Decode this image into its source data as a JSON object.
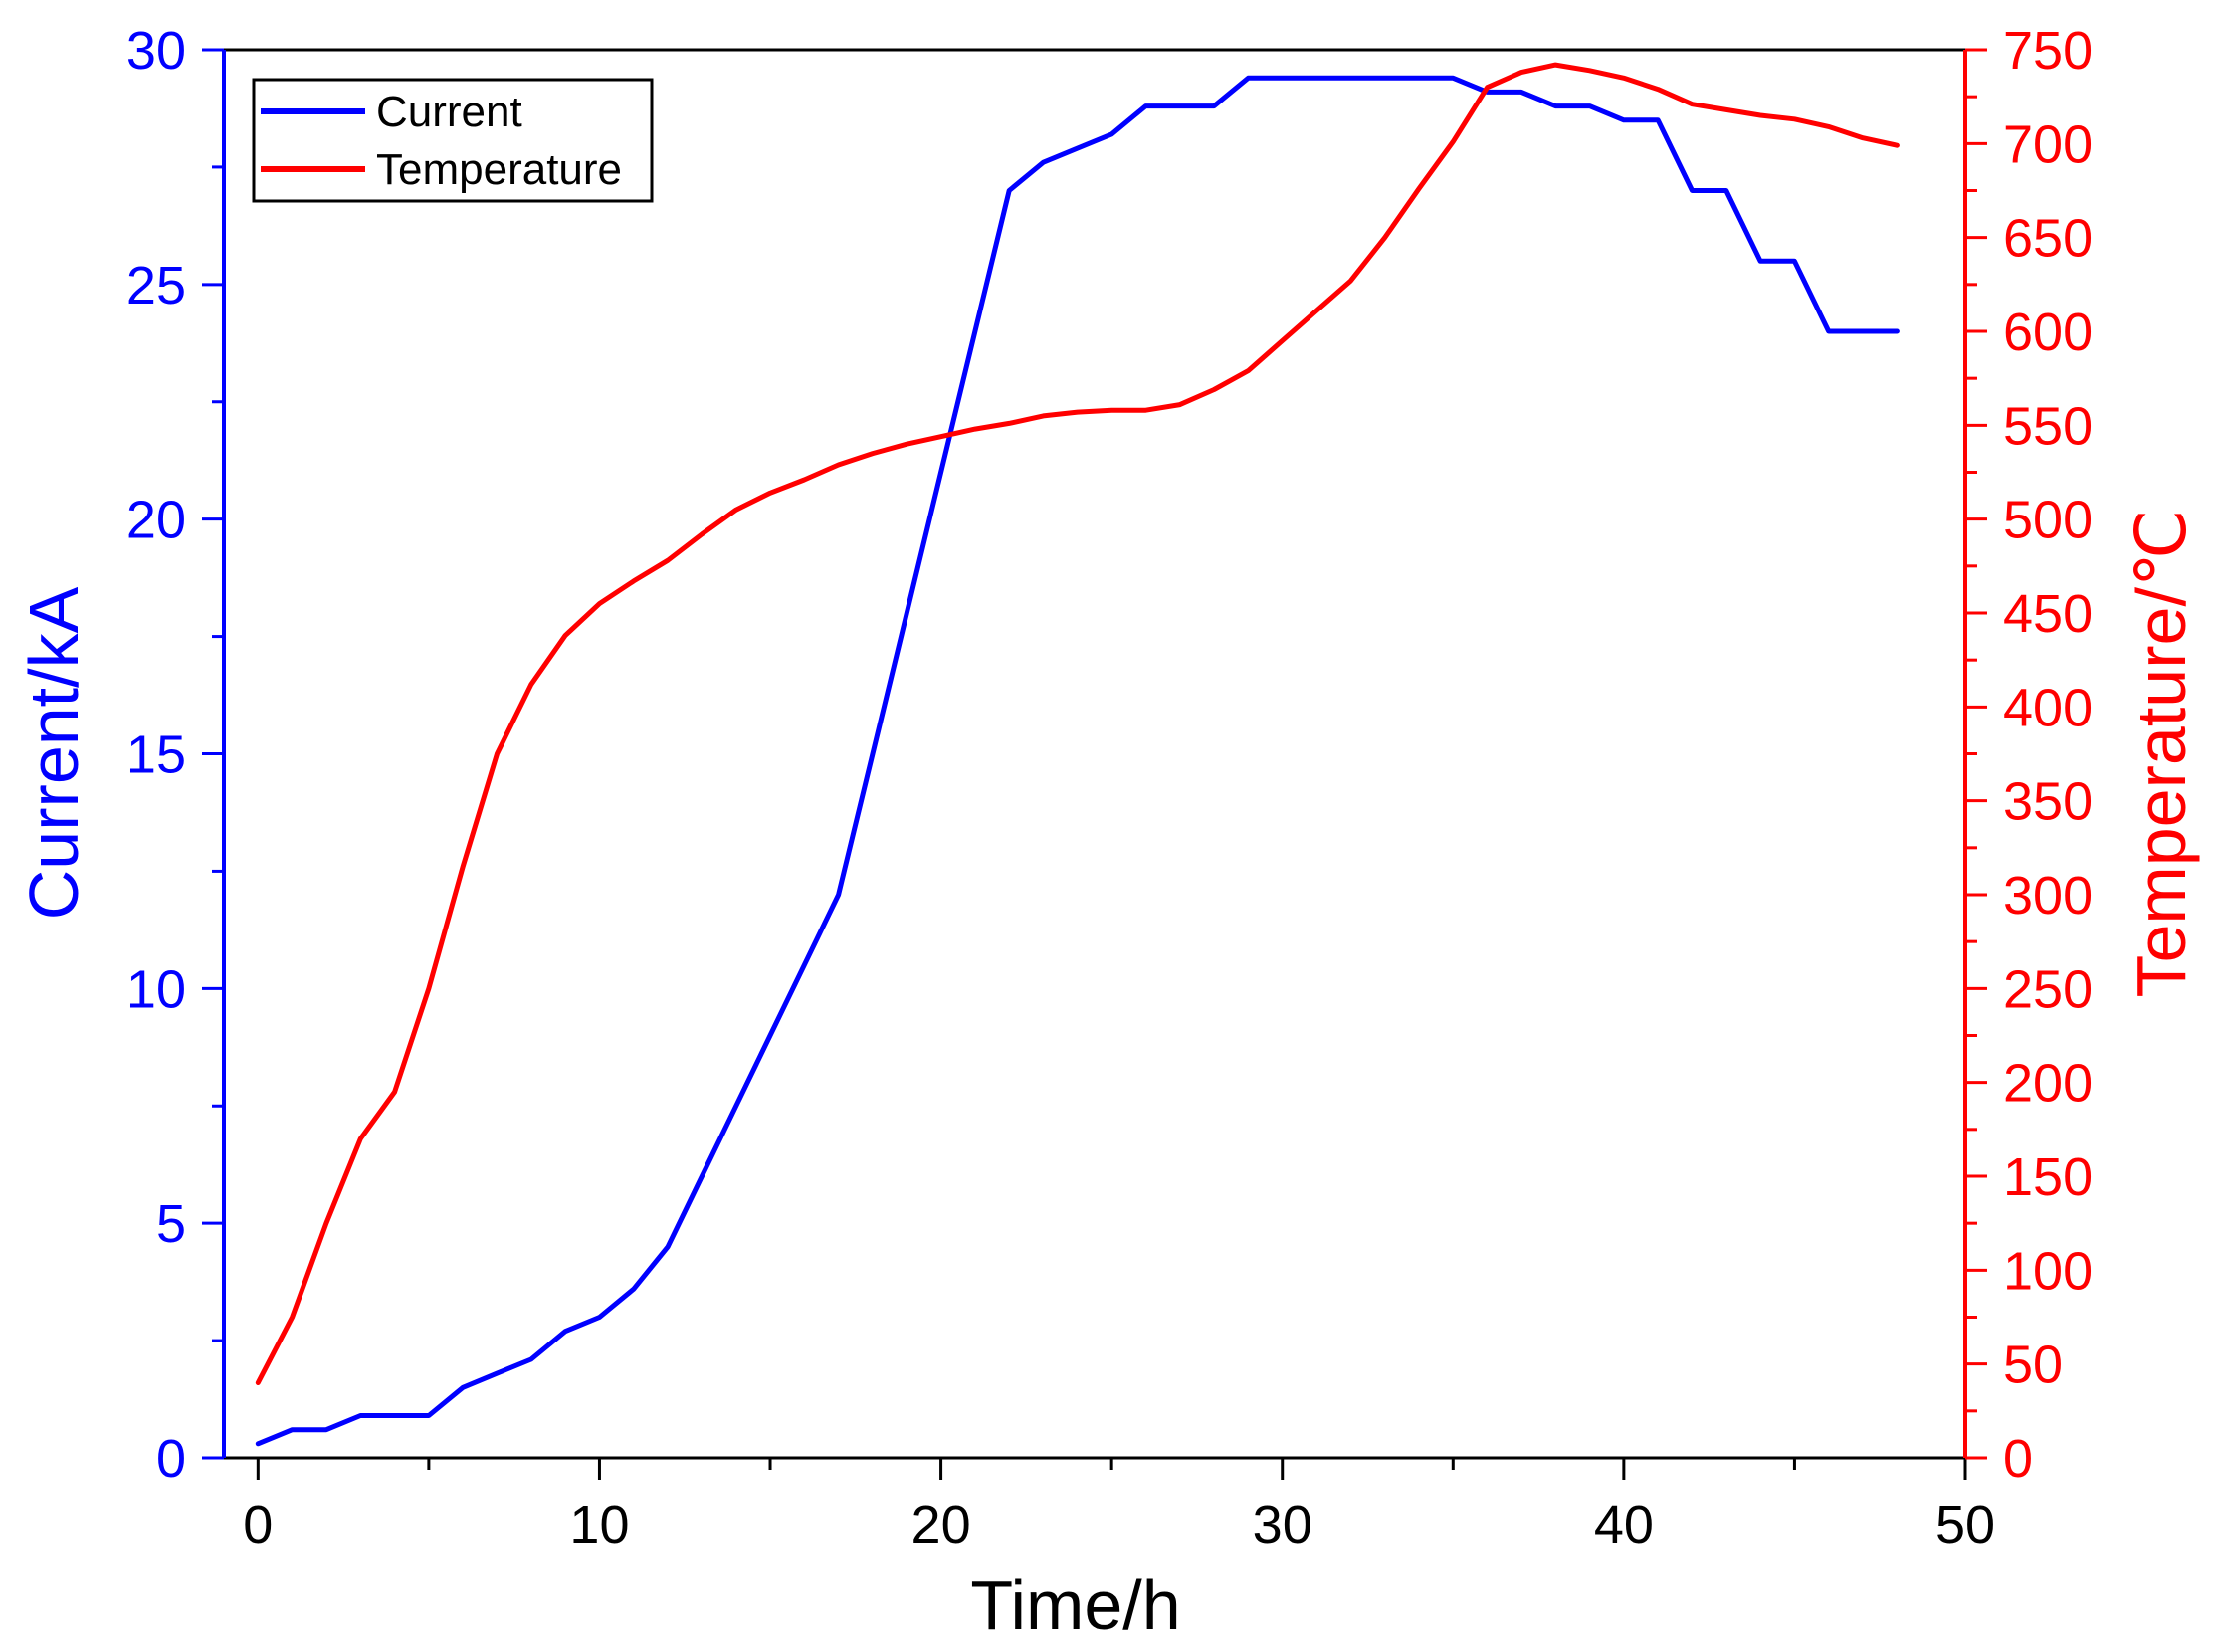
{
  "chart_data": {
    "type": "line",
    "title": "",
    "xlabel": "Time/h",
    "ylabel_left": "Current/kA",
    "ylabel_right": "Temperature/℃",
    "xlim": [
      -1,
      50
    ],
    "ylim_left": [
      0,
      30
    ],
    "ylim_right": [
      0,
      750
    ],
    "x_ticks": [
      0,
      10,
      20,
      30,
      40,
      50
    ],
    "y_left_ticks": [
      0,
      5,
      10,
      15,
      20,
      25,
      30
    ],
    "y_right_ticks": [
      0,
      50,
      100,
      150,
      200,
      250,
      300,
      350,
      400,
      450,
      500,
      550,
      600,
      650,
      700,
      750
    ],
    "grid": false,
    "legend_position": "top-left",
    "series": [
      {
        "name": "Current",
        "axis": "left",
        "color": "#0000ff",
        "x": [
          0,
          1,
          2,
          3,
          4,
          5,
          6,
          7,
          8,
          9,
          10,
          11,
          12,
          13,
          14,
          15,
          16,
          17,
          18,
          19,
          20,
          21,
          22,
          23,
          24,
          25,
          26,
          27,
          28,
          29,
          30,
          31,
          32,
          33,
          34,
          35,
          36,
          37,
          38,
          39,
          40,
          41,
          42,
          43,
          44,
          45,
          46,
          47,
          48
        ],
        "values": [
          0.3,
          0.6,
          0.6,
          0.9,
          0.9,
          0.9,
          1.5,
          1.8,
          2.1,
          2.7,
          3.0,
          3.6,
          4.5,
          6.0,
          7.5,
          9.0,
          10.5,
          12.0,
          15.0,
          18.0,
          21.0,
          24.0,
          27.0,
          27.6,
          27.9,
          28.2,
          28.8,
          28.8,
          28.8,
          29.4,
          29.4,
          29.4,
          29.4,
          29.4,
          29.4,
          29.4,
          29.1,
          29.1,
          28.8,
          28.8,
          28.5,
          28.5,
          27.0,
          27.0,
          25.5,
          25.5,
          24.0,
          24.0,
          24.0
        ]
      },
      {
        "name": "Temperature",
        "axis": "right",
        "color": "#ff0000",
        "x": [
          0,
          1,
          2,
          3,
          4,
          5,
          6,
          7,
          8,
          9,
          10,
          11,
          12,
          13,
          14,
          15,
          16,
          17,
          18,
          19,
          20,
          21,
          22,
          23,
          24,
          25,
          26,
          27,
          28,
          29,
          30,
          31,
          32,
          33,
          34,
          35,
          36,
          37,
          38,
          39,
          40,
          41,
          42,
          43,
          44,
          45,
          46,
          47,
          48
        ],
        "values": [
          40,
          75,
          125,
          170,
          195,
          250,
          315,
          375,
          412,
          438,
          455,
          467,
          478,
          492,
          505,
          514,
          521,
          529,
          535,
          540,
          544,
          548,
          551,
          555,
          557,
          558,
          558,
          561,
          569,
          579,
          595,
          611,
          627,
          650,
          676,
          701,
          730,
          738,
          742,
          739,
          735,
          729,
          721,
          718,
          715,
          713,
          709,
          703,
          699
        ]
      }
    ]
  }
}
